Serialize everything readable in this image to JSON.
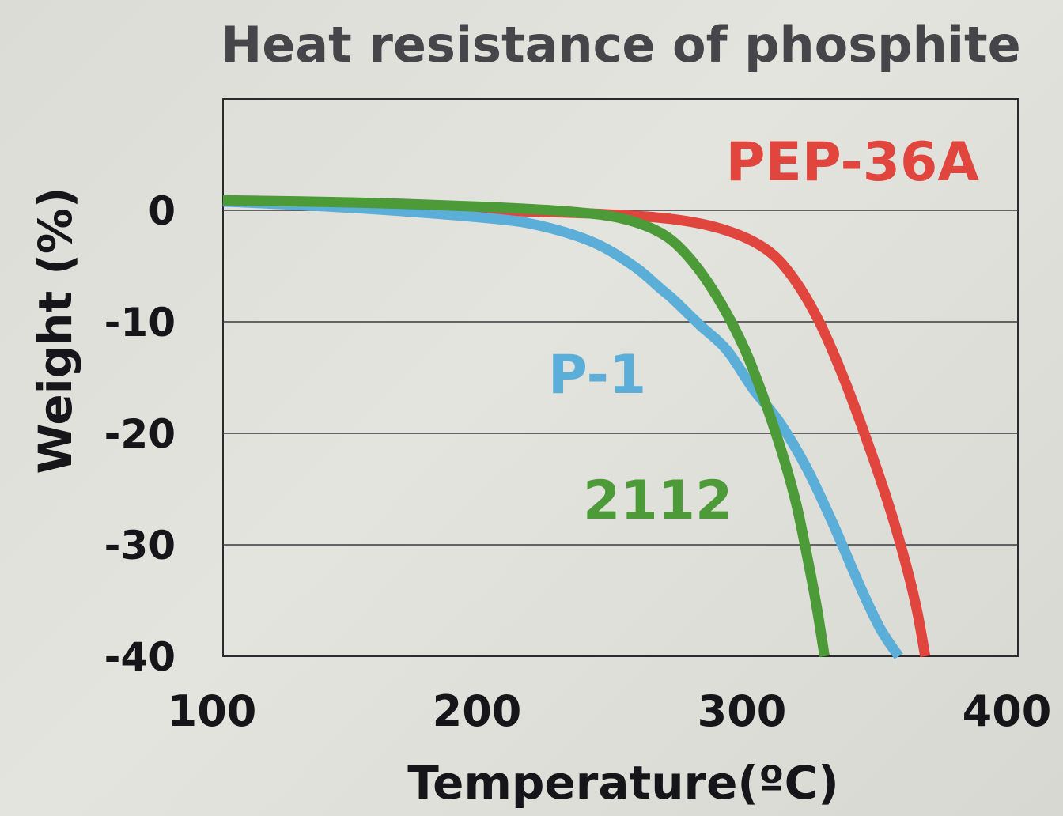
{
  "chart_data": {
    "type": "line",
    "title": "Heat resistance of phosphite",
    "xlabel": "Temperature(ºC)",
    "ylabel": "Weight (%)",
    "xlim": [
      100,
      400
    ],
    "ylim": [
      -40,
      10
    ],
    "x_ticks": [
      "100",
      "200",
      "300",
      "400"
    ],
    "x_tick_values": [
      100,
      200,
      300,
      400
    ],
    "y_ticks": [
      "0",
      "-10",
      "-20",
      "-30",
      "-40"
    ],
    "y_tick_values": [
      0,
      -10,
      -20,
      -30,
      -40
    ],
    "grid": "horizontal",
    "series": [
      {
        "name": "PEP-36A",
        "color": "#e0453e",
        "x": [
          100,
          150,
          200,
          240,
          270,
          290,
          305,
          315,
          325,
          335,
          345,
          352,
          358,
          362,
          365
        ],
        "y": [
          0.8,
          0.4,
          0.0,
          -0.3,
          -0.8,
          -1.8,
          -3.5,
          -6,
          -10,
          -15.5,
          -22,
          -27,
          -32,
          -36,
          -40
        ]
      },
      {
        "name": "P-1",
        "color": "#5aaed8",
        "x": [
          100,
          150,
          200,
          220,
          240,
          255,
          265,
          270,
          280,
          290,
          300,
          310,
          320,
          330,
          340,
          348,
          355
        ],
        "y": [
          0.8,
          0.2,
          -0.7,
          -1.4,
          -2.9,
          -5,
          -7,
          -8,
          -10.3,
          -12.5,
          -16,
          -19,
          -23,
          -28,
          -33.5,
          -37.5,
          -40
        ]
      },
      {
        "name": "2112",
        "color": "#4c9a38",
        "x": [
          100,
          150,
          200,
          230,
          250,
          265,
          275,
          285,
          295,
          302,
          310,
          316,
          320,
          324,
          327
        ],
        "y": [
          0.9,
          0.7,
          0.3,
          -0.1,
          -0.7,
          -2,
          -4,
          -7.2,
          -11.5,
          -15.5,
          -21,
          -26,
          -30.5,
          -35.5,
          -40
        ]
      }
    ]
  }
}
